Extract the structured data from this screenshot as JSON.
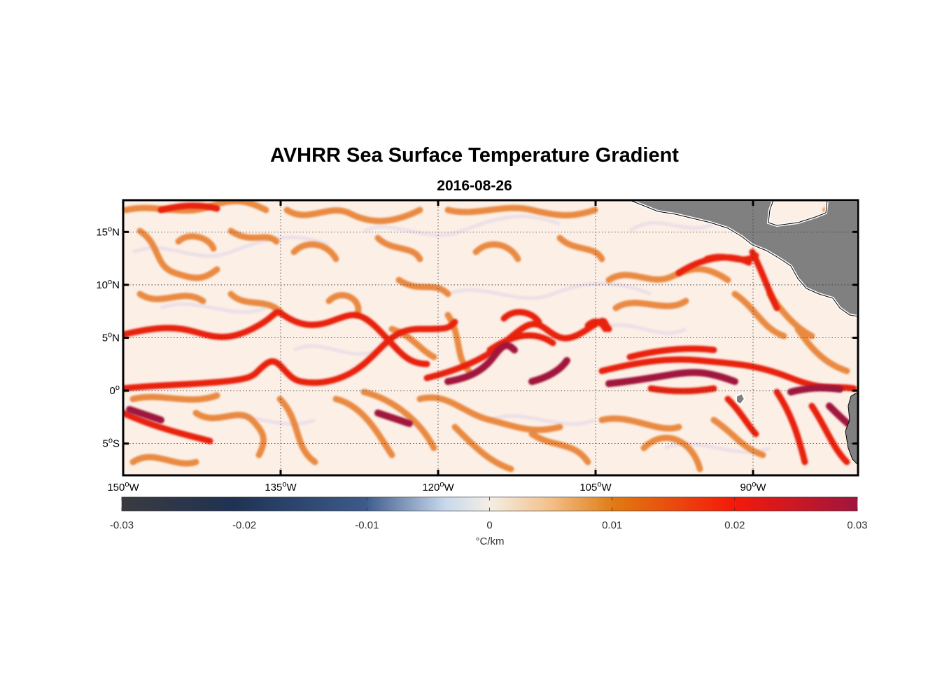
{
  "title": "AVHRR Sea Surface Temperature Gradient",
  "subtitle": "2016-08-26",
  "map": {
    "lon_range": [
      -150,
      -80
    ],
    "lat_range": [
      -8,
      18
    ],
    "lon_ticks": [
      {
        "value": -150,
        "deg": "150",
        "hemi": "W"
      },
      {
        "value": -135,
        "deg": "135",
        "hemi": "W"
      },
      {
        "value": -120,
        "deg": "120",
        "hemi": "W"
      },
      {
        "value": -105,
        "deg": "105",
        "hemi": "W"
      },
      {
        "value": -90,
        "deg": "90",
        "hemi": "W"
      }
    ],
    "lat_ticks": [
      {
        "value": 15,
        "deg": "15",
        "hemi": "N"
      },
      {
        "value": 10,
        "deg": "10",
        "hemi": "N"
      },
      {
        "value": 5,
        "deg": "5",
        "hemi": "N"
      },
      {
        "value": 0,
        "deg": "0",
        "hemi": ""
      },
      {
        "value": -5,
        "deg": "5",
        "hemi": "S"
      }
    ],
    "grid": true,
    "land_color": "#808080",
    "ocean_background": "#fbefe6"
  },
  "colorbar": {
    "min": -0.03,
    "max": 0.03,
    "tick_labels": [
      "-0.03",
      "-0.02",
      "-0.01",
      "0",
      "0.01",
      "0.02",
      "0.03"
    ],
    "tick_values": [
      -0.03,
      -0.02,
      -0.01,
      0,
      0.01,
      0.02,
      0.03
    ],
    "unit_label": "°C/km",
    "colors": [
      "#3b3b40",
      "#1f3253",
      "#3c5a8a",
      "#c8d8ec",
      "#fbefe6",
      "#e07a12",
      "#f41a0a",
      "#a0153e"
    ]
  },
  "fronts": {
    "strong_color": "#a0153e",
    "medium_color": "#e8200e",
    "weak_color": "#e88030"
  }
}
